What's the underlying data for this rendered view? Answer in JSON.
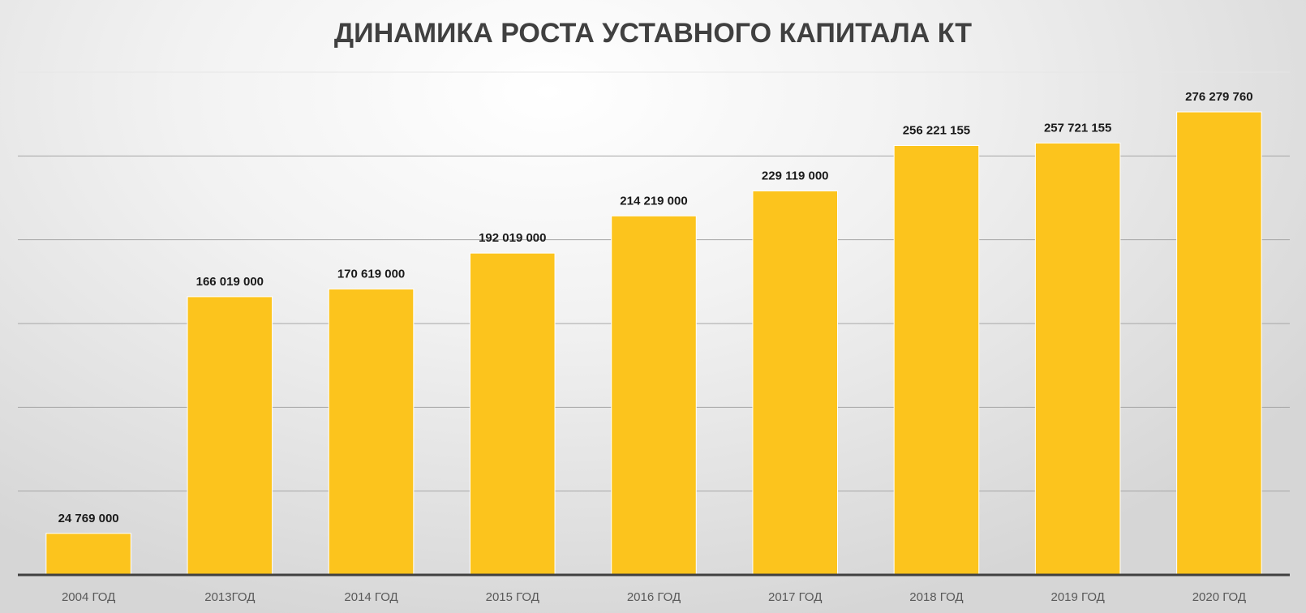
{
  "chart_data": {
    "type": "bar",
    "title": "ДИНАМИКА РОСТА УСТАВНОГО  КАПИТАЛА КТ",
    "categories": [
      "2004 ГОД",
      "2013ГОД",
      "2014 ГОД",
      "2015 ГОД",
      "2016 ГОД",
      "2017 ГОД",
      "2018 ГОД",
      "2019 ГОД",
      "2020 ГОД"
    ],
    "values": [
      24769000,
      166019000,
      170619000,
      192019000,
      214219000,
      229119000,
      256221155,
      257721155,
      276279760
    ],
    "data_labels": [
      "24 769 000",
      "166 019 000",
      "170 619 000",
      "192 019 000",
      "214 219 000",
      "229 119 000",
      "256 221 155",
      "257 721 155",
      "276 279 760"
    ],
    "xlabel": "",
    "ylabel": "",
    "ylim": [
      0,
      300000000
    ],
    "y_gridline_step": 50000000,
    "y_tick_labels_shown": false,
    "grid": true,
    "legend": "none",
    "colors": {
      "bar": "#FCC41D",
      "bar_edge": "#FFFFFF",
      "grid": "#A6A6A6",
      "axis": "#404040",
      "title": "#404040",
      "data_label": "#1A1A1A",
      "tick": "#595959"
    }
  }
}
